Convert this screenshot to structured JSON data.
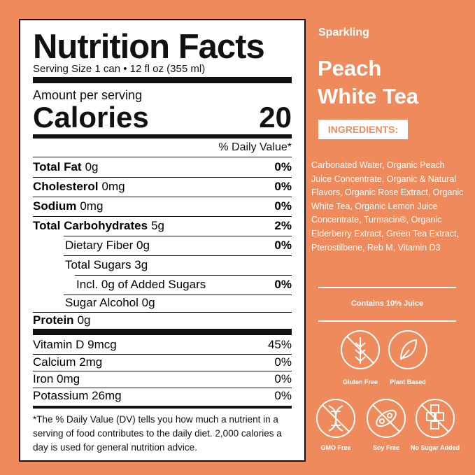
{
  "label": {
    "title": "Nutrition Facts",
    "serving_size": "Serving Size 1 can • 12 fl oz (355 ml)",
    "amount_per_serving": "Amount per serving",
    "calories_label": "Calories",
    "calories": 20,
    "daily_value_header": "% Daily Value*",
    "rows": [
      {
        "name": "Total Fat",
        "amount": "0g",
        "dv": "0%"
      },
      {
        "name": "Cholesterol",
        "amount": "0mg",
        "dv": "0%"
      },
      {
        "name": "Sodium",
        "amount": "0mg",
        "dv": "0%"
      },
      {
        "name": "Total Carbohydrates",
        "amount": "5g",
        "dv": "2%"
      },
      {
        "name": "Dietary Fiber",
        "amount": "0g",
        "dv": "0%"
      },
      {
        "name": "Total Sugars",
        "amount": "3g"
      },
      {
        "name": "Incl. 0g of Added Sugars",
        "dv": "0%"
      },
      {
        "name": "Sugar Alcohol",
        "amount": "0g"
      },
      {
        "name": "Protein",
        "amount": "0g"
      }
    ],
    "vitamins": [
      {
        "name": "Vitamin D",
        "amount": "9mcg",
        "dv": "45%"
      },
      {
        "name": "Calcium",
        "amount": "2mg",
        "dv": "0%"
      },
      {
        "name": "Iron",
        "amount": "0mg",
        "dv": "0%"
      },
      {
        "name": "Potassium",
        "amount": "26mg",
        "dv": "0%"
      }
    ],
    "footnote": "*The % Daily Value (DV) tells you how much a nutrient in a serving of food contributes to the daily diet. 2,000 calories a day is used for general nutrition advice."
  },
  "product": {
    "subtitle": "Sparkling",
    "name_lines": [
      "Peach",
      "White Tea"
    ],
    "ingredients_heading": "INGREDIENTS:",
    "ingredients": "Carbonated Water, Organic Peach Juice Concentrate, Organic & Natural Flavors, Organic Rose Extract, Organic White Tea, Organic Lemon Juice Concentrate, Turmacin®, Organic Elderberry Extract, Green Tea Extract, Pterostilbene, Reb M, Vitamin D3",
    "juice_note": "Contains 10% Juice",
    "badges": [
      "Gluten Free",
      "Plant Based",
      "GMO Free",
      "Soy Free",
      "No Sugar Added"
    ]
  }
}
